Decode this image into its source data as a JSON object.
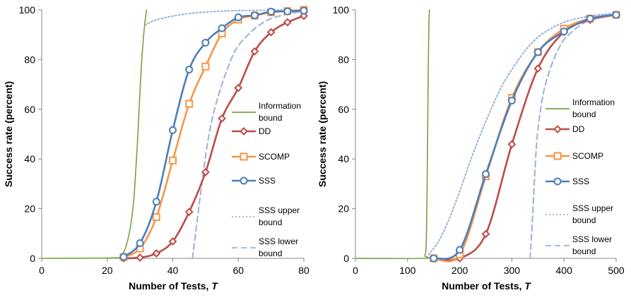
{
  "chart_data": [
    {
      "type": "line",
      "xlabel": "Number of Tests, ",
      "xlabel_var": "T",
      "ylabel": "Success rate (percent)",
      "xlim": [
        0,
        80
      ],
      "ylim": [
        0,
        100
      ],
      "xticks": [
        "0",
        "20",
        "40",
        "60",
        "80"
      ],
      "yticks": [
        "0",
        "20",
        "40",
        "60",
        "80",
        "100"
      ],
      "legend": [
        {
          "lines": [
            "Information",
            "bound"
          ],
          "series": "info"
        },
        {
          "lines": [
            "DD"
          ],
          "series": "dd"
        },
        {
          "lines": [
            "SCOMP"
          ],
          "series": "scomp"
        },
        {
          "lines": [
            "SSS"
          ],
          "series": "sss"
        },
        {
          "lines": [
            "SSS upper",
            "bound"
          ],
          "series": "upper"
        },
        {
          "lines": [
            "SSS lower",
            "bound"
          ],
          "series": "lower"
        }
      ],
      "series": [
        {
          "key": "info",
          "name": "Information bound",
          "color": "#77a23e",
          "style": "solid",
          "marker": "none",
          "x": [
            0,
            22,
            24,
            25,
            26,
            27,
            28,
            28.6,
            29.2,
            29.8,
            30.4,
            31,
            31.5,
            32
          ],
          "y": [
            0,
            0.2,
            1,
            2.5,
            6,
            12,
            22,
            33,
            46,
            62,
            77,
            88,
            95,
            100
          ]
        },
        {
          "key": "dd",
          "name": "DD",
          "color": "#be4b48",
          "style": "solid",
          "marker": "diamond",
          "x": [
            25,
            30,
            35,
            40,
            45,
            50,
            55,
            60,
            65,
            70,
            75,
            80
          ],
          "y": [
            0,
            0.3,
            2,
            6.8,
            18.7,
            34.7,
            56.3,
            68.6,
            83.3,
            91,
            95,
            97.6
          ]
        },
        {
          "key": "scomp",
          "name": "SCOMP",
          "color": "#f79646",
          "style": "solid",
          "marker": "square",
          "x": [
            25,
            30,
            35,
            40,
            45,
            50,
            55,
            60,
            65,
            70,
            75,
            80
          ],
          "y": [
            0.5,
            4,
            16.6,
            39.4,
            62.2,
            77.2,
            90.5,
            96.1,
            97.7,
            99,
            99.5,
            100
          ]
        },
        {
          "key": "sss",
          "name": "SSS",
          "color": "#4a7ebb",
          "style": "solid",
          "marker": "circle",
          "x": [
            25,
            30,
            35,
            40,
            45,
            50,
            55,
            60,
            65,
            70,
            75,
            80
          ],
          "y": [
            0.6,
            6.1,
            22.8,
            51.6,
            76,
            86.8,
            92.6,
            97,
            97.8,
            99.3,
            99.4,
            99.7
          ]
        },
        {
          "key": "upper",
          "name": "SSS upper bound",
          "color": "#95b3d7",
          "style": "dotted",
          "marker": "none",
          "x": [
            31.5,
            35,
            40,
            45,
            50,
            55,
            60,
            65,
            70,
            80
          ],
          "y": [
            94,
            96,
            97.5,
            98.5,
            99.1,
            99.5,
            99.7,
            99.8,
            99.9,
            100
          ]
        },
        {
          "key": "lower",
          "name": "SSS lower bound",
          "color": "#95b3d7",
          "style": "dashed",
          "marker": "none",
          "x": [
            46,
            48,
            50,
            52,
            55,
            58,
            60,
            63,
            66,
            70,
            75,
            80
          ],
          "y": [
            0,
            21,
            41,
            56,
            70,
            80.7,
            85.6,
            90,
            93.5,
            96.5,
            98.3,
            99.5
          ]
        }
      ]
    },
    {
      "type": "line",
      "xlabel": "Number of Tests, ",
      "xlabel_var": "T",
      "ylabel": "Success rate (percent)",
      "xlim": [
        0,
        500
      ],
      "ylim": [
        0,
        100
      ],
      "xticks": [
        "0",
        "100",
        "200",
        "300",
        "400",
        "500"
      ],
      "yticks": [
        "0",
        "20",
        "40",
        "60",
        "80",
        "100"
      ],
      "legend": [
        {
          "lines": [
            "Information",
            "bound"
          ],
          "series": "info"
        },
        {
          "lines": [
            "DD"
          ],
          "series": "dd"
        },
        {
          "lines": [
            "SCOMP"
          ],
          "series": "scomp"
        },
        {
          "lines": [
            "SSS"
          ],
          "series": "sss"
        },
        {
          "lines": [
            "SSS upper",
            "bound"
          ],
          "series": "upper"
        },
        {
          "lines": [
            "SSS lower",
            "bound"
          ],
          "series": "lower"
        }
      ],
      "series": [
        {
          "key": "info",
          "name": "Information bound",
          "color": "#77a23e",
          "style": "solid",
          "marker": "none",
          "x": [
            0,
            130,
            133,
            135,
            136,
            137,
            138,
            139,
            140,
            141,
            142
          ],
          "y": [
            0,
            0,
            1,
            3,
            8,
            20,
            40,
            62,
            82,
            95,
            100
          ]
        },
        {
          "key": "dd",
          "name": "DD",
          "color": "#be4b48",
          "style": "solid",
          "marker": "diamond",
          "x": [
            150,
            200,
            250,
            300,
            350,
            400,
            450,
            500
          ],
          "y": [
            0,
            0,
            9.8,
            45.9,
            76.4,
            91.1,
            96,
            98
          ]
        },
        {
          "key": "scomp",
          "name": "SCOMP",
          "color": "#f79646",
          "style": "solid",
          "marker": "square",
          "x": [
            150,
            200,
            250,
            300,
            350,
            400,
            450,
            500
          ],
          "y": [
            0,
            1.6,
            33,
            64.6,
            83,
            92.4,
            96.5,
            98
          ]
        },
        {
          "key": "sss",
          "name": "SSS",
          "color": "#4a7ebb",
          "style": "solid",
          "marker": "circle",
          "x": [
            150,
            200,
            250,
            300,
            350,
            400,
            450,
            500
          ],
          "y": [
            0,
            3.4,
            33.9,
            63.5,
            83,
            91.3,
            96.5,
            98
          ]
        },
        {
          "key": "upper",
          "name": "SSS upper bound",
          "color": "#95b3d7",
          "style": "dotted",
          "marker": "none",
          "x": [
            140,
            160,
            180,
            200,
            220,
            240,
            260,
            280,
            300,
            325,
            350,
            375,
            400,
            425,
            450,
            475,
            500
          ],
          "y": [
            1.5,
            7,
            16,
            27,
            39,
            50,
            60,
            69,
            76,
            83.5,
            89,
            92.5,
            95,
            96.5,
            97.5,
            98.2,
            98.6
          ]
        },
        {
          "key": "lower",
          "name": "SSS lower bound",
          "color": "#95b3d7",
          "style": "dashed",
          "marker": "none",
          "x": [
            335,
            340,
            345,
            350,
            360,
            370,
            380,
            390,
            400,
            420,
            440,
            460,
            480,
            500
          ],
          "y": [
            0,
            18,
            38,
            52,
            66,
            74,
            80,
            84.5,
            88,
            92,
            95,
            96.8,
            97.8,
            98.5
          ]
        }
      ]
    }
  ]
}
